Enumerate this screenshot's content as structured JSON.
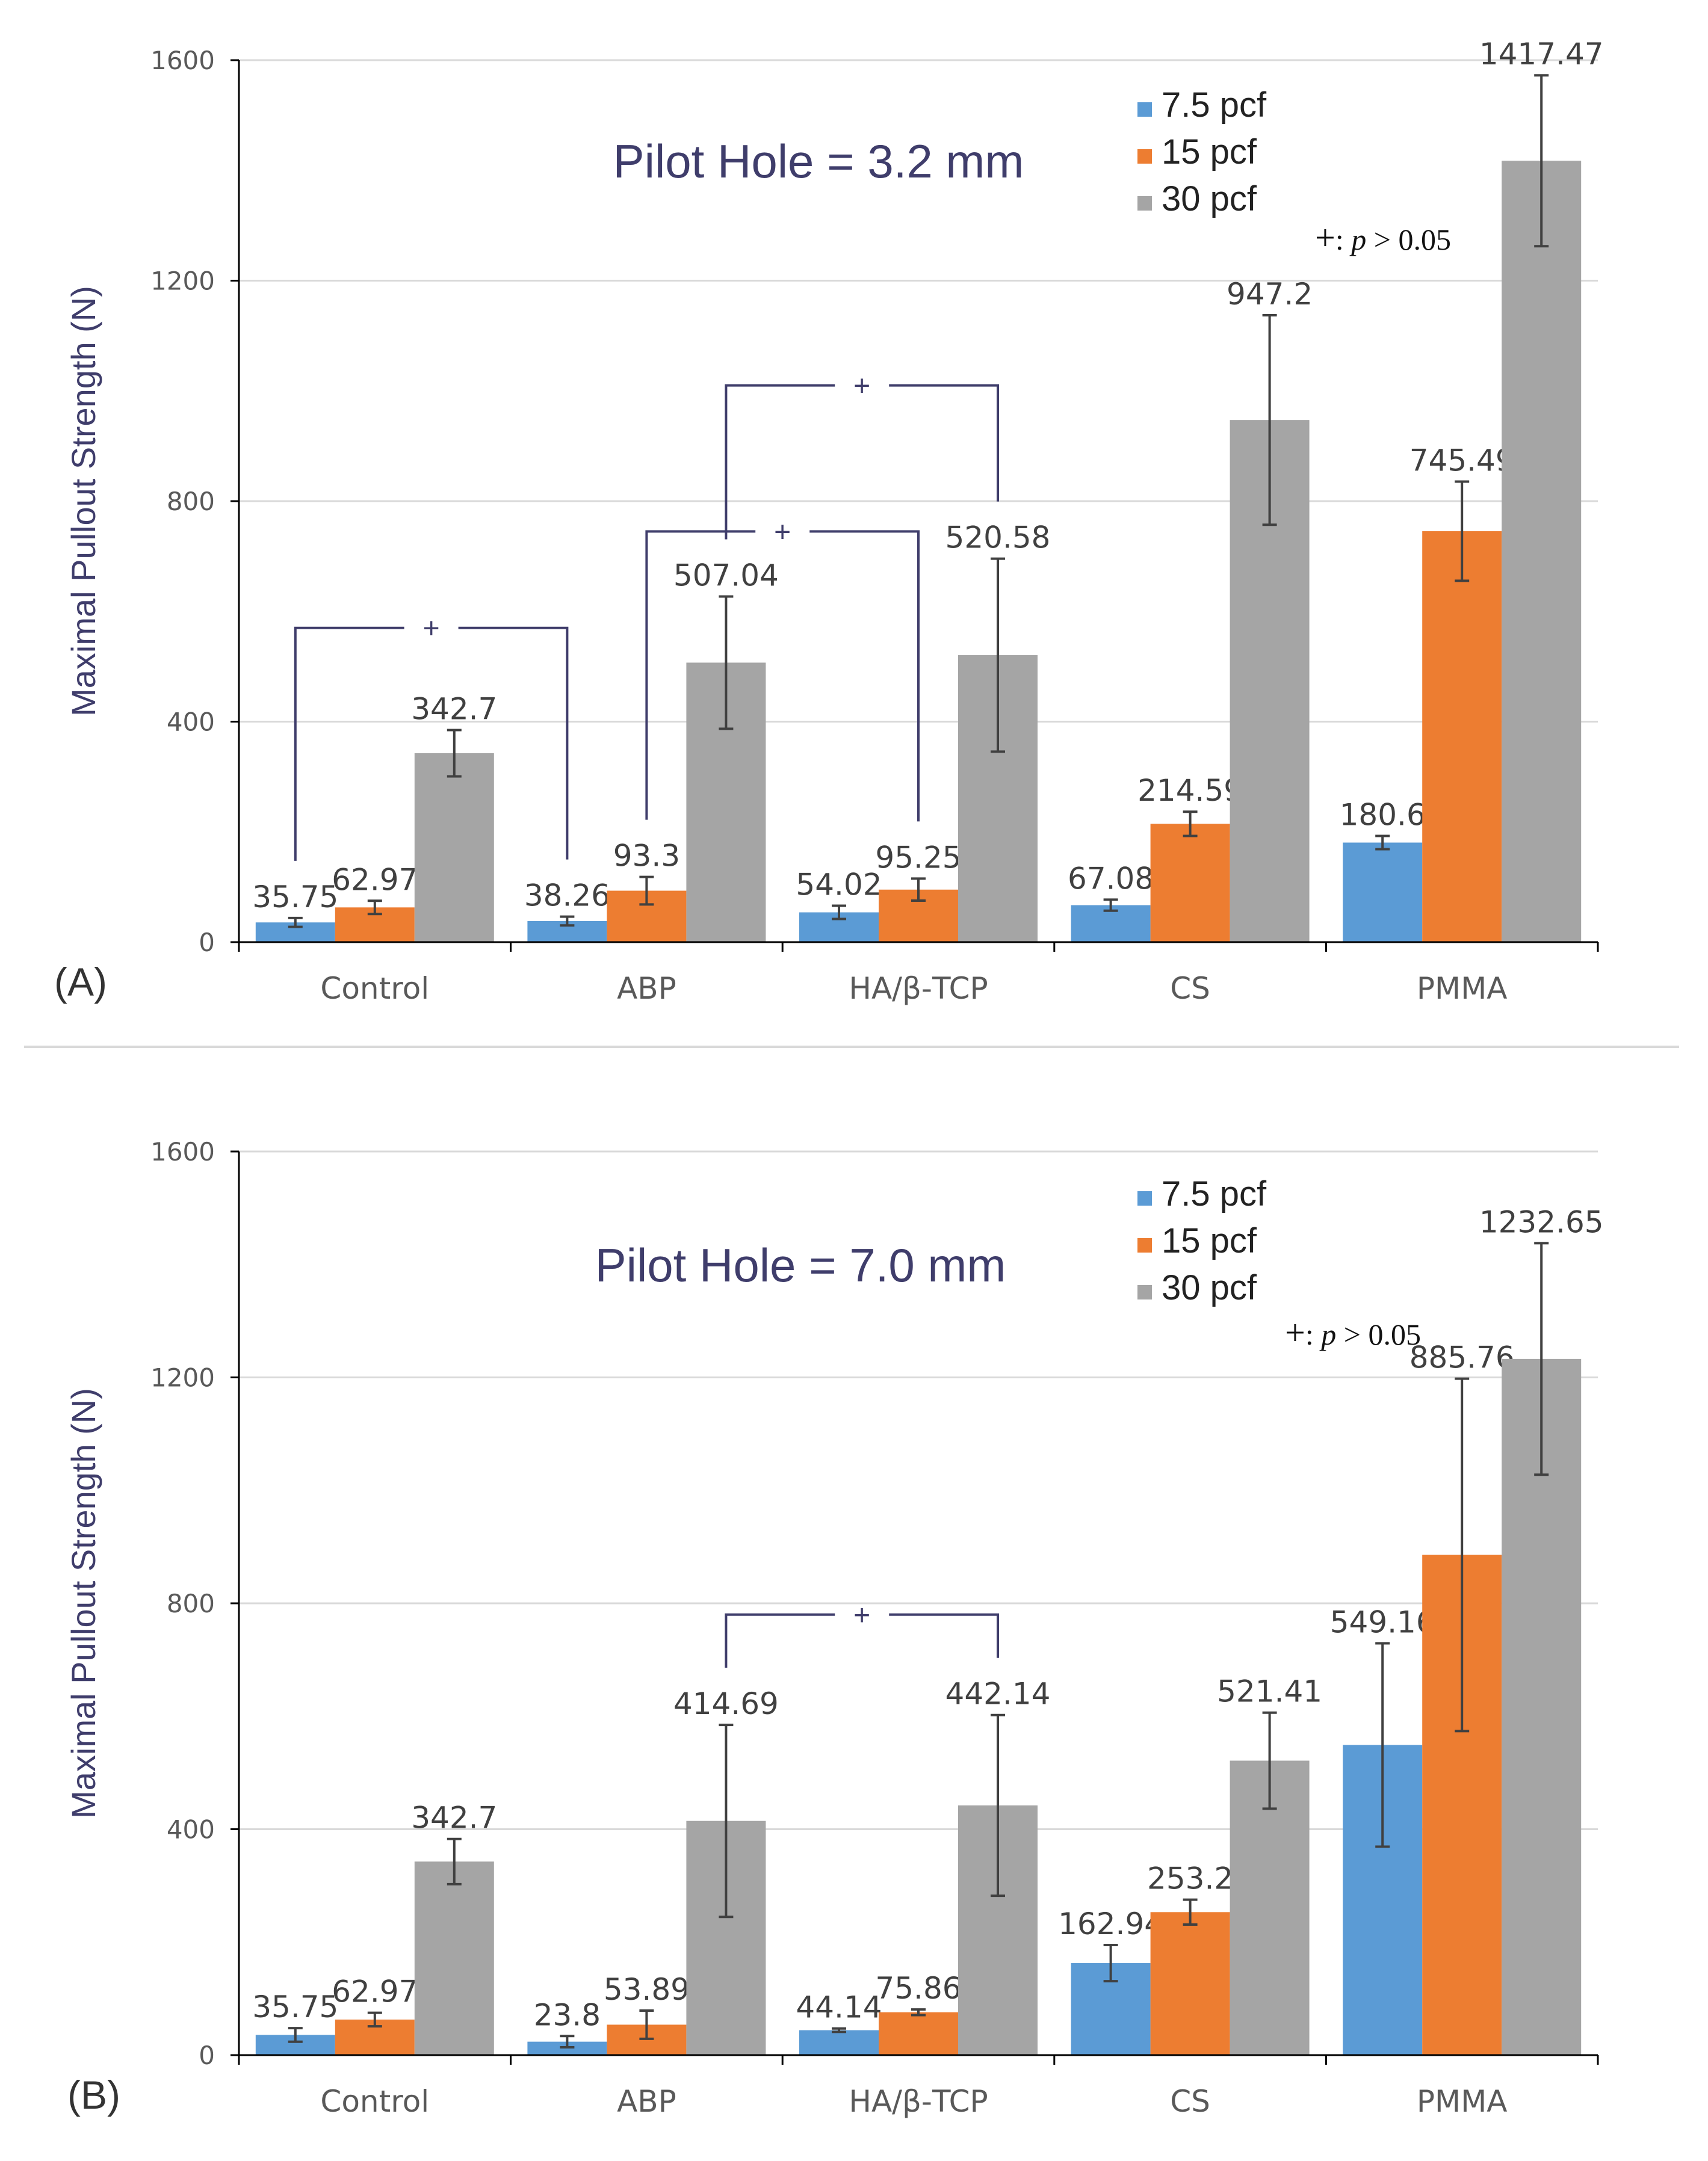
{
  "chart_data": [
    {
      "type": "bar",
      "panel_label": "(A)",
      "title": "Pilot Hole = 3.2 mm",
      "xlabel": "",
      "ylabel": "Maximal Pullout Strength (N)",
      "ylim": [
        0,
        1600
      ],
      "yticks": [
        0,
        400,
        800,
        1200,
        1600
      ],
      "ytick_labels": [
        "0",
        "400",
        "800",
        "1200",
        "1600"
      ],
      "grid": true,
      "legend_position": "top-right",
      "categories": [
        "Control",
        "ABP",
        "HA/β-TCP",
        "CS",
        "PMMA"
      ],
      "series": [
        {
          "name": "7.5 pcf",
          "color": "#5b9bd5",
          "values": [
            35.75,
            38.26,
            54.02,
            67.08,
            180.6
          ],
          "errors": [
            8,
            8,
            12,
            10,
            12
          ],
          "labels": [
            "35.75",
            "38.26",
            "54.02",
            "67.08",
            "180.6"
          ]
        },
        {
          "name": "15 pcf",
          "color": "#ed7d31",
          "values": [
            62.97,
            93.3,
            95.25,
            214.59,
            745.49
          ],
          "errors": [
            12,
            25,
            20,
            22,
            90
          ],
          "labels": [
            "62.97",
            "93.3",
            "95.25",
            "214.59",
            "745.49"
          ]
        },
        {
          "name": "30 pcf",
          "color": "#a5a5a5",
          "values": [
            342.7,
            507.04,
            520.58,
            947.2,
            1417.47
          ],
          "errors": [
            42,
            120,
            175,
            190,
            155
          ],
          "labels": [
            "342.7",
            "507.04",
            "520.58",
            "947.2",
            "1417.47"
          ]
        }
      ],
      "significance": {
        "symbol": "+",
        "note_symbol": "+",
        "note_sep": ":",
        "note_p": "p",
        "note_rest": " > 0.05",
        "brackets": [
          {
            "from_category": 0,
            "from_series": 0,
            "to_category": 1,
            "to_series": 0,
            "level": 570
          },
          {
            "from_category": 1,
            "from_series": 1,
            "to_category": 2,
            "to_series": 1,
            "level": 745
          },
          {
            "from_category": 1,
            "from_series": 2,
            "to_category": 2,
            "to_series": 2,
            "level": 1010
          }
        ]
      }
    },
    {
      "type": "bar",
      "panel_label": "(B)",
      "title": "Pilot Hole = 7.0 mm",
      "xlabel": "",
      "ylabel": "Maximal Pullout Strength (N)",
      "ylim": [
        0,
        1600
      ],
      "yticks": [
        0,
        400,
        800,
        1200,
        1600
      ],
      "ytick_labels": [
        "0",
        "400",
        "800",
        "1200",
        "1600"
      ],
      "grid": true,
      "legend_position": "top-right",
      "categories": [
        "Control",
        "ABP",
        "HA/β-TCP",
        "CS",
        "PMMA"
      ],
      "series": [
        {
          "name": "7.5 pcf",
          "color": "#5b9bd5",
          "values": [
            35.75,
            23.8,
            44.14,
            162.94,
            549.16
          ],
          "errors": [
            12,
            10,
            3,
            32,
            180
          ],
          "labels": [
            "35.75",
            "23.8",
            "44.14",
            "162.94",
            "549.16"
          ]
        },
        {
          "name": "15 pcf",
          "color": "#ed7d31",
          "values": [
            62.97,
            53.89,
            75.86,
            253.2,
            885.76
          ],
          "errors": [
            12,
            25,
            5,
            22,
            312
          ],
          "labels": [
            "62.97",
            "53.89",
            "75.86",
            "253.2",
            "885.76"
          ]
        },
        {
          "name": "30 pcf",
          "color": "#a5a5a5",
          "values": [
            342.7,
            414.69,
            442.14,
            521.41,
            1232.65
          ],
          "errors": [
            40,
            170,
            160,
            85,
            205
          ],
          "labels": [
            "342.7",
            "414.69",
            "442.14",
            "521.41",
            "1232.65"
          ]
        }
      ],
      "significance": {
        "symbol": "+",
        "note_symbol": "+",
        "note_sep": ":",
        "note_p": "p",
        "note_rest": " > 0.05",
        "brackets": [
          {
            "from_category": 1,
            "from_series": 2,
            "to_category": 2,
            "to_series": 2,
            "level": 780
          }
        ]
      }
    }
  ]
}
